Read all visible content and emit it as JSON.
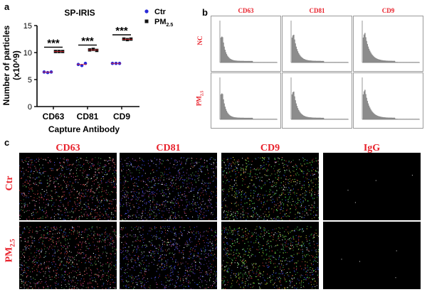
{
  "panel_a": {
    "letter": "a",
    "chart_data": {
      "type": "scatter",
      "title": "SP-IRIS",
      "xlabel": "Capture Antibody",
      "ylabel_line1": "Number of particles",
      "ylabel_line2": "(x10^9)",
      "categories": [
        "CD63",
        "CD81",
        "CD9"
      ],
      "ylim": [
        0,
        15
      ],
      "yticks": [
        "0",
        "5",
        "10",
        "15"
      ],
      "series": [
        {
          "name": "Ctr",
          "color": "#2a2ad8",
          "values": [
            [
              6.4,
              6.3,
              6.4
            ],
            [
              7.8,
              7.6,
              8.0
            ],
            [
              8.0,
              8.0,
              8.0
            ]
          ]
        },
        {
          "name": "PM",
          "name_sub": "2.5",
          "color": "#111111",
          "values": [
            [
              10.2,
              10.2,
              10.2
            ],
            [
              10.5,
              10.6,
              10.4
            ],
            [
              12.5,
              12.4,
              12.5
            ]
          ]
        }
      ],
      "significance": [
        "***",
        "***",
        "***"
      ]
    }
  },
  "panel_b": {
    "letter": "b",
    "columns": [
      "CD63",
      "CD81",
      "CD9"
    ],
    "rows": [
      {
        "label": "NC",
        "sub": ""
      },
      {
        "label": "PM",
        "sub": "2.5"
      }
    ]
  },
  "panel_c": {
    "letter": "c",
    "columns": [
      "CD63",
      "CD81",
      "CD9",
      "IgG"
    ],
    "rows": [
      {
        "label": "Ctr",
        "sub": ""
      },
      {
        "label": "PM",
        "sub": "2.5"
      }
    ]
  },
  "colors": {
    "label_red": "#e8202a",
    "ctr_blue": "#2a2ad8",
    "pm_black": "#111111"
  }
}
